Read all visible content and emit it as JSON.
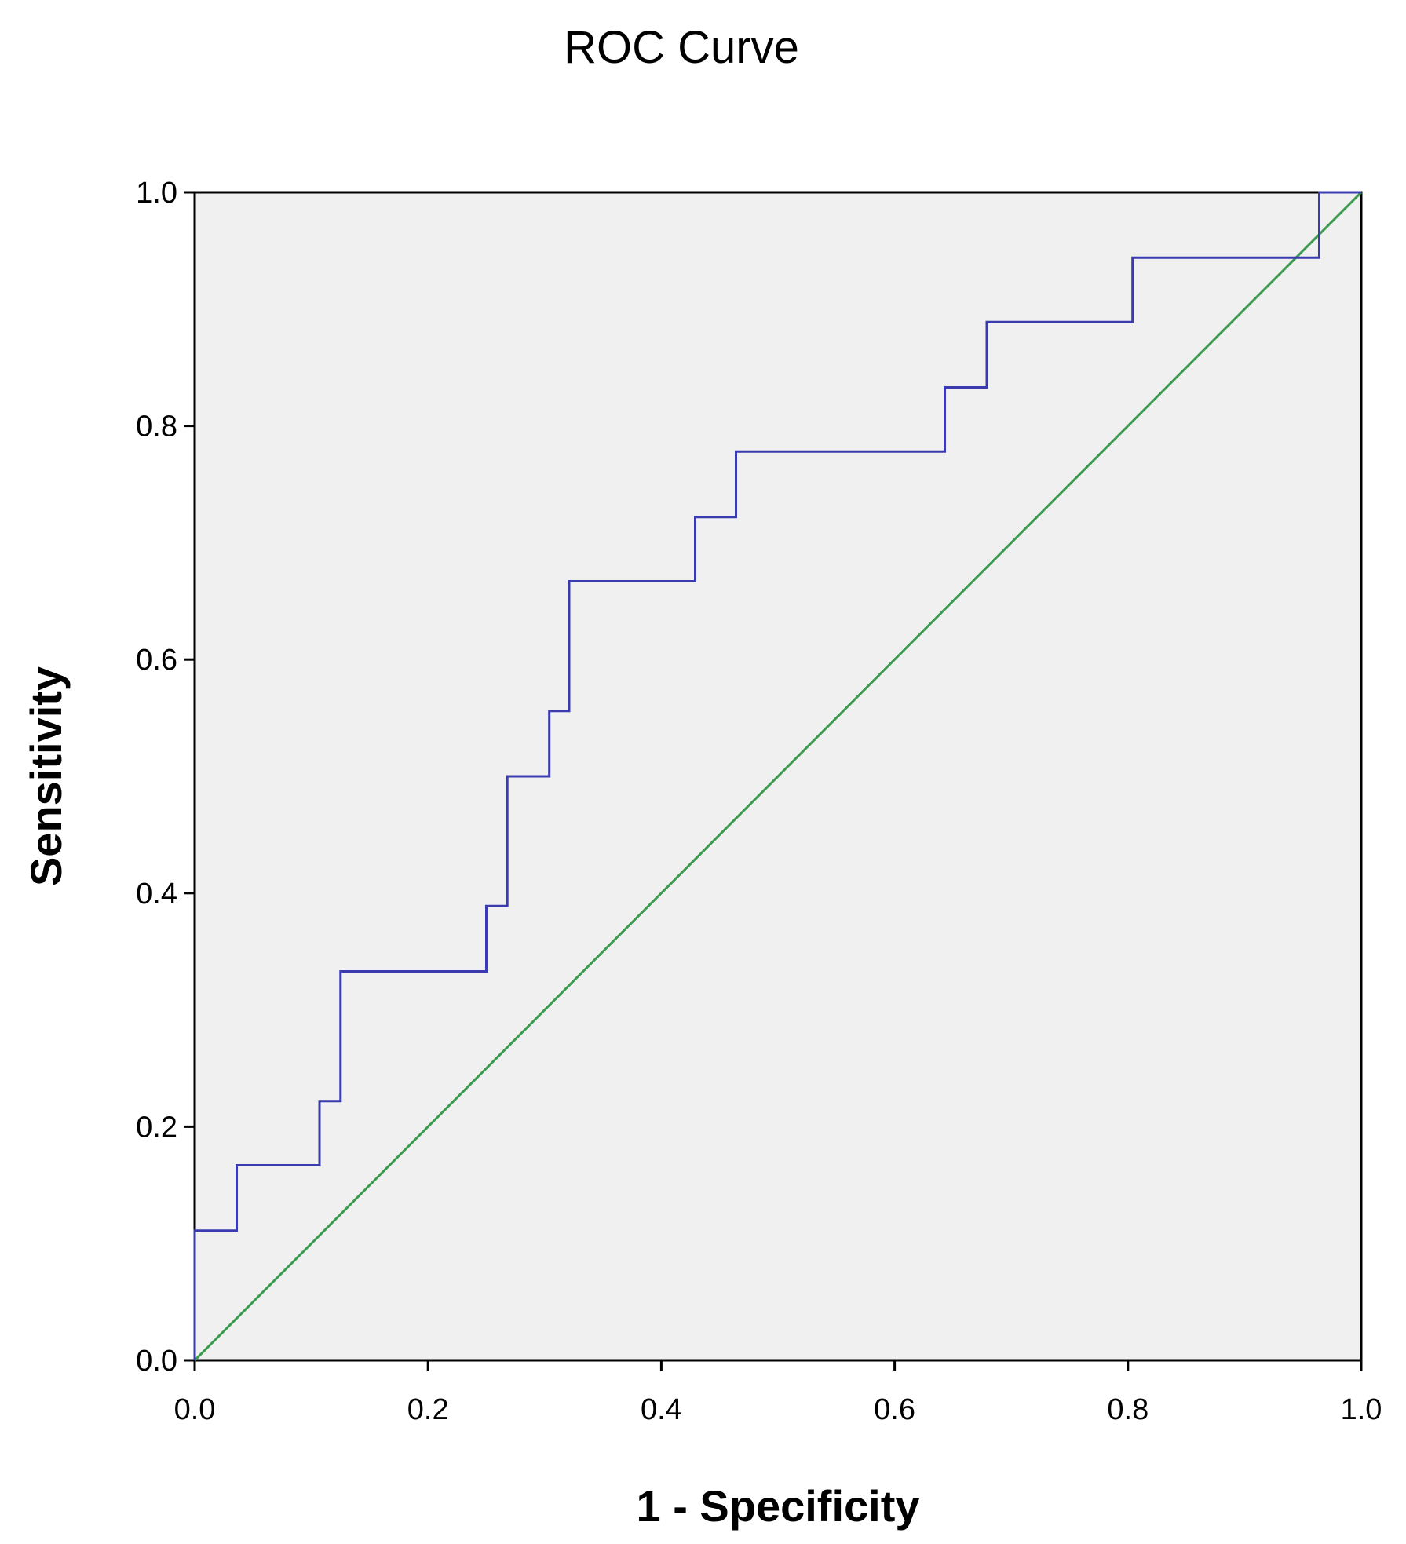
{
  "chart_data": {
    "type": "line",
    "title": "ROC Curve",
    "xlabel": "1 - Specificity",
    "ylabel": "Sensitivity",
    "xlim": [
      0,
      1
    ],
    "ylim": [
      0,
      1
    ],
    "x_ticks": [
      "0.0",
      "0.2",
      "0.4",
      "0.6",
      "0.8",
      "1.0"
    ],
    "y_ticks": [
      "0.0",
      "0.2",
      "0.4",
      "0.6",
      "0.8",
      "1.0"
    ],
    "grid": false,
    "legend": "none",
    "colors": {
      "plot_background": "#f0f0f0",
      "roc_curve": "#3b3bb0",
      "reference_line": "#3a9a4e"
    },
    "series": [
      {
        "x": [
          0,
          0,
          0.036,
          0.036,
          0.107,
          0.107,
          0.125,
          0.125,
          0.25,
          0.25,
          0.268,
          0.268,
          0.304,
          0.304,
          0.321,
          0.321,
          0.429,
          0.429,
          0.464,
          0.464,
          0.643,
          0.643,
          0.679,
          0.679,
          0.804,
          0.804,
          0.964,
          0.964,
          1
        ],
        "y": [
          0,
          0.111,
          0.111,
          0.167,
          0.167,
          0.222,
          0.222,
          0.333,
          0.333,
          0.389,
          0.389,
          0.5,
          0.5,
          0.556,
          0.556,
          0.667,
          0.667,
          0.722,
          0.722,
          0.778,
          0.778,
          0.833,
          0.833,
          0.889,
          0.889,
          0.944,
          0.944,
          1,
          1
        ]
      },
      {
        "x": [
          0,
          1
        ],
        "y": [
          0,
          1
        ]
      }
    ]
  }
}
